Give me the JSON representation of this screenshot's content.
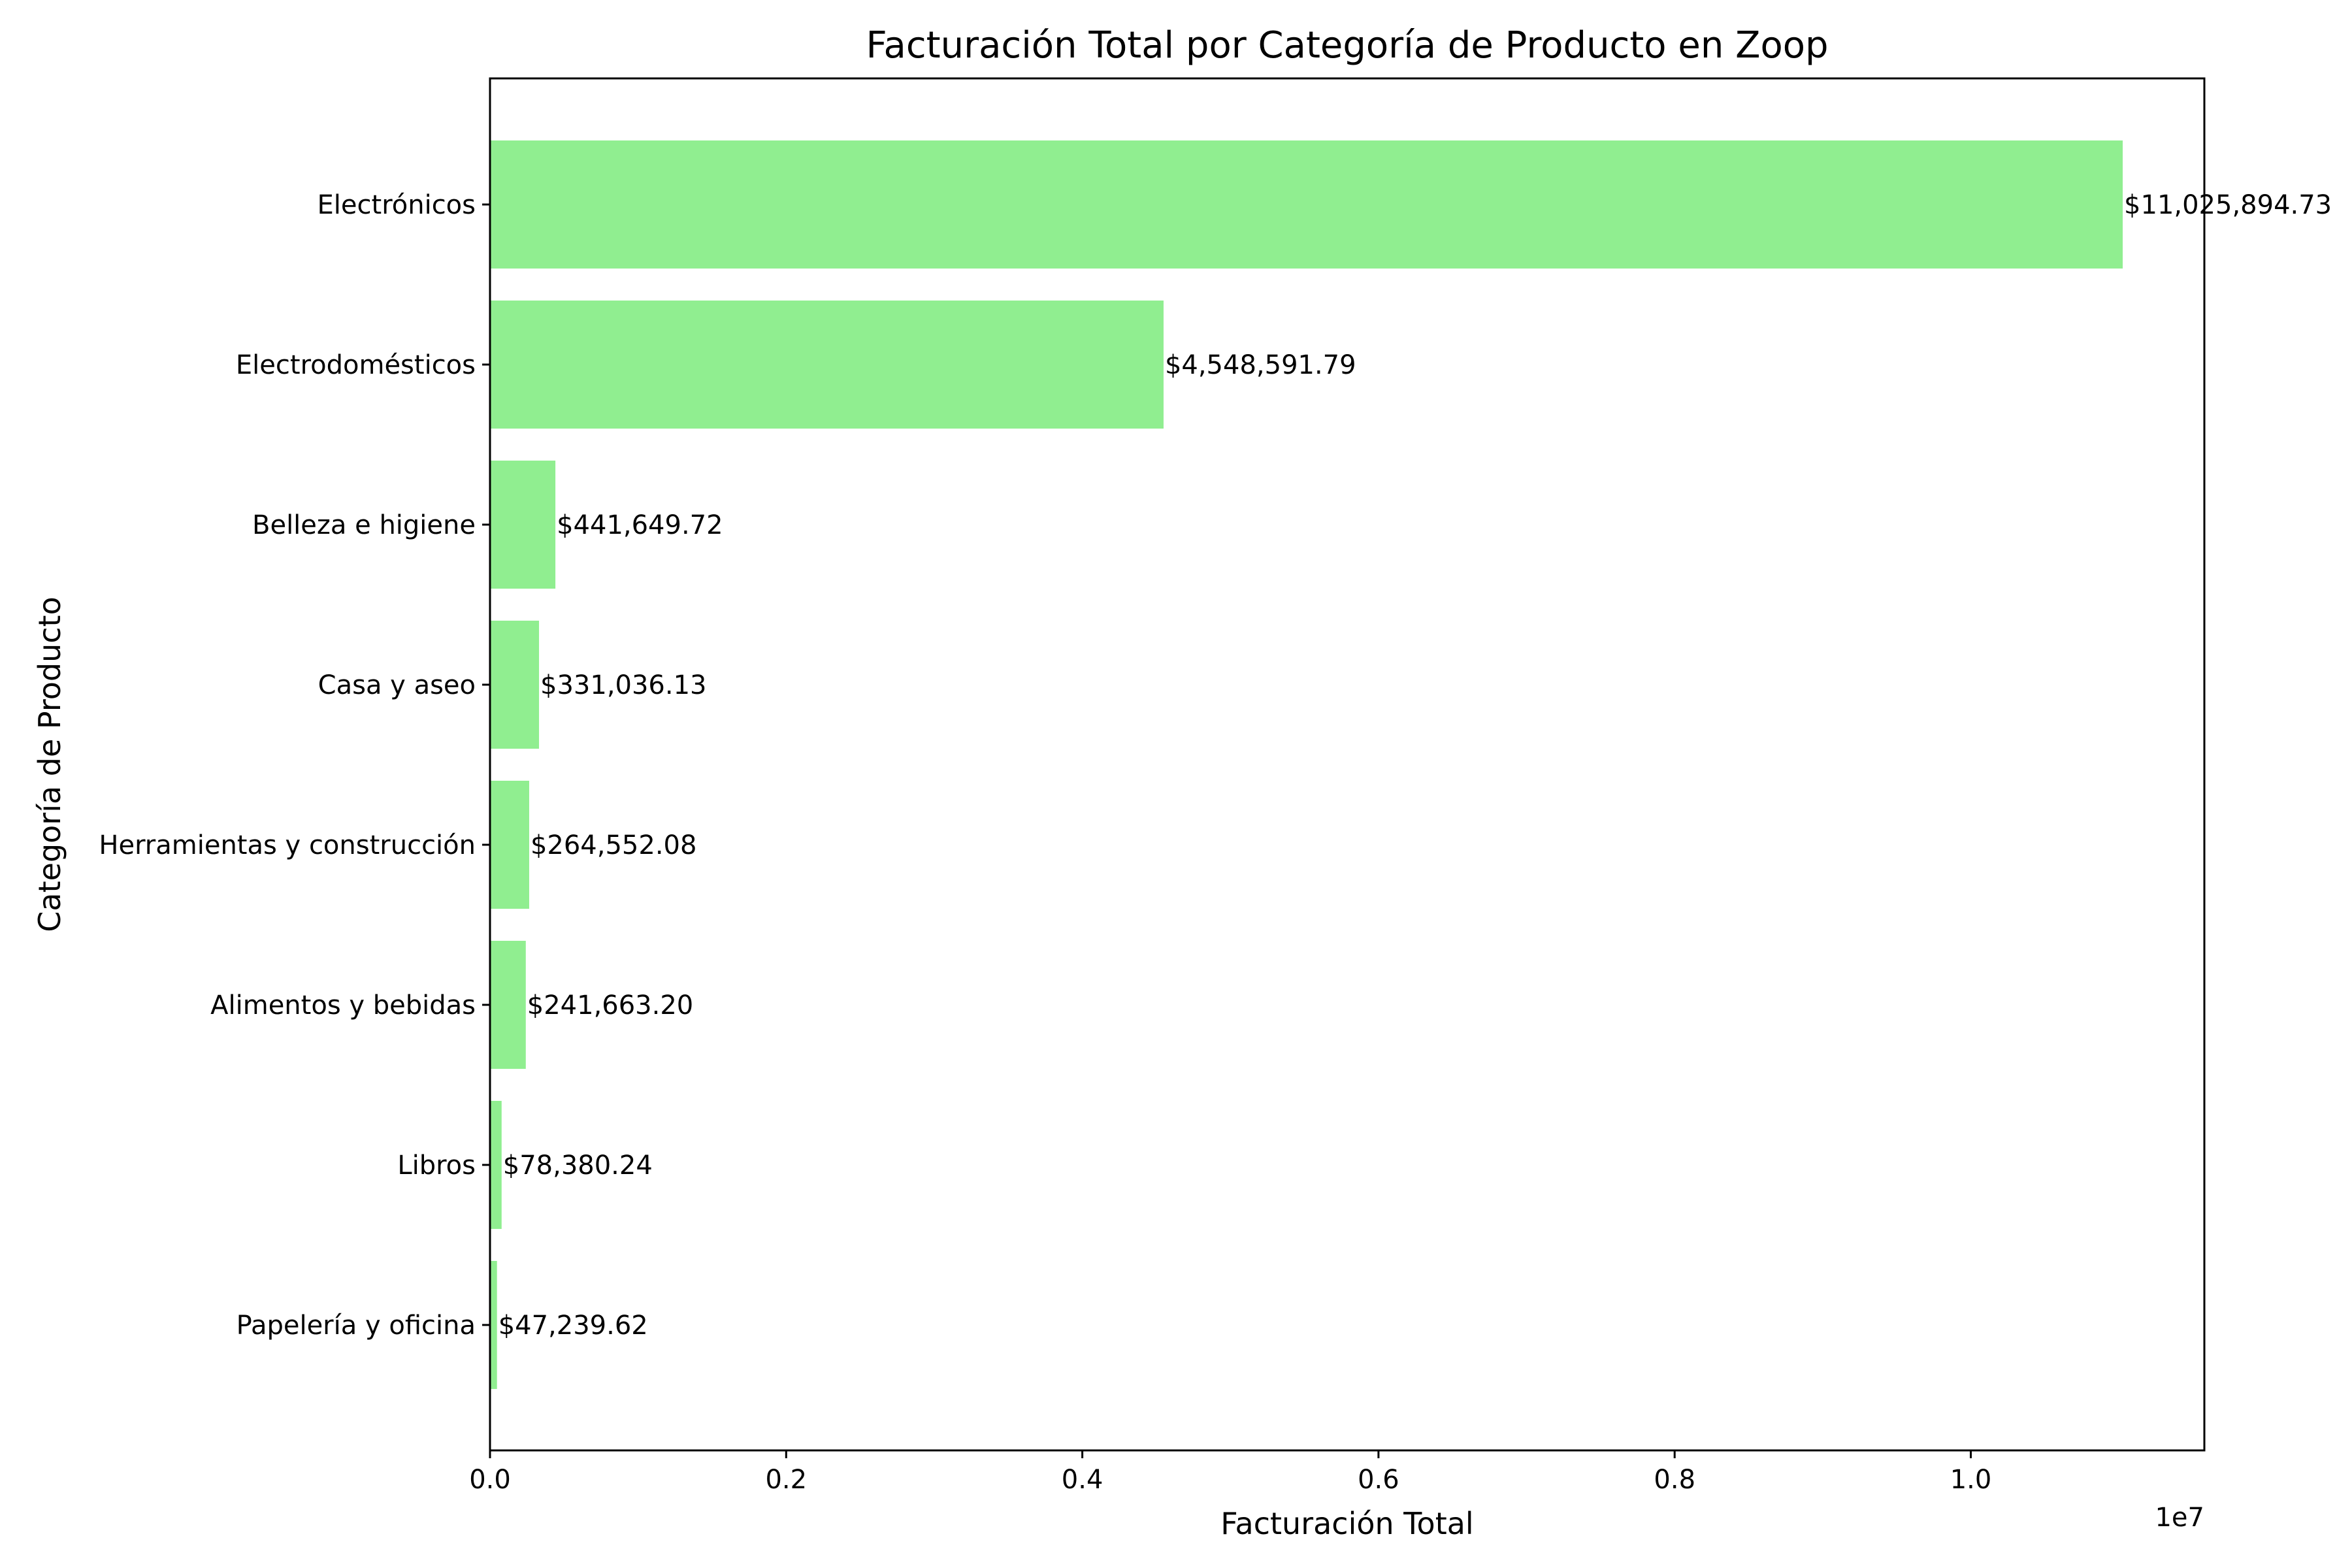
{
  "chart_data": {
    "type": "bar",
    "orientation": "horizontal",
    "title": "Facturación Total por Categoría de Producto en Zoop",
    "xlabel": "Facturación Total",
    "ylabel": "Categoría de Producto",
    "x_scale_label": "1e7",
    "xlim": [
      0,
      11577189.47
    ],
    "x_ticks": [
      0,
      2000000,
      4000000,
      6000000,
      8000000,
      10000000
    ],
    "x_tick_labels": [
      "0.0",
      "0.2",
      "0.4",
      "0.6",
      "0.8",
      "1.0"
    ],
    "categories": [
      "Electrónicos",
      "Electrodomésticos",
      "Belleza e higiene",
      "Casa y aseo",
      "Herramientas y construcción",
      "Alimentos y bebidas",
      "Libros",
      "Papelería y oficina"
    ],
    "values": [
      11025894.73,
      4548591.79,
      441649.72,
      331036.13,
      264552.08,
      241663.2,
      78380.24,
      47239.62
    ],
    "data_labels": [
      "$11,025,894.73",
      "$4,548,591.79",
      "$441,649.72",
      "$331,036.13",
      "$264,552.08",
      "$241,663.20",
      "$78,380.24",
      "$47,239.62"
    ],
    "bar_color": "#90ee90",
    "grid": false,
    "legend": "none"
  }
}
